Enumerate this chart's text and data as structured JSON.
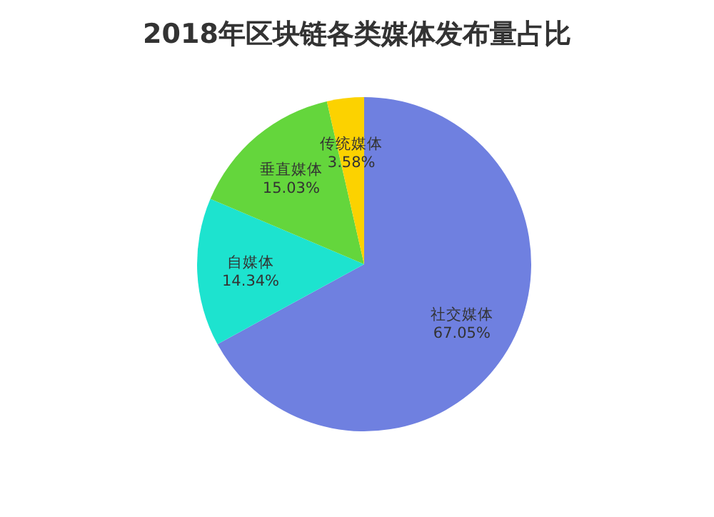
{
  "chart_data": {
    "type": "pie",
    "title": "2018年区块链各类媒体发布量占比",
    "categories": [
      "社交媒体",
      "自媒体",
      "垂直媒体",
      "传统媒体"
    ],
    "values": [
      67.05,
      14.34,
      15.03,
      3.58
    ],
    "value_labels": [
      "67.05%",
      "14.34%",
      "15.03%",
      "3.58%"
    ],
    "colors": [
      "#6f80e0",
      "#1de3cf",
      "#64d63c",
      "#fcd200"
    ]
  }
}
